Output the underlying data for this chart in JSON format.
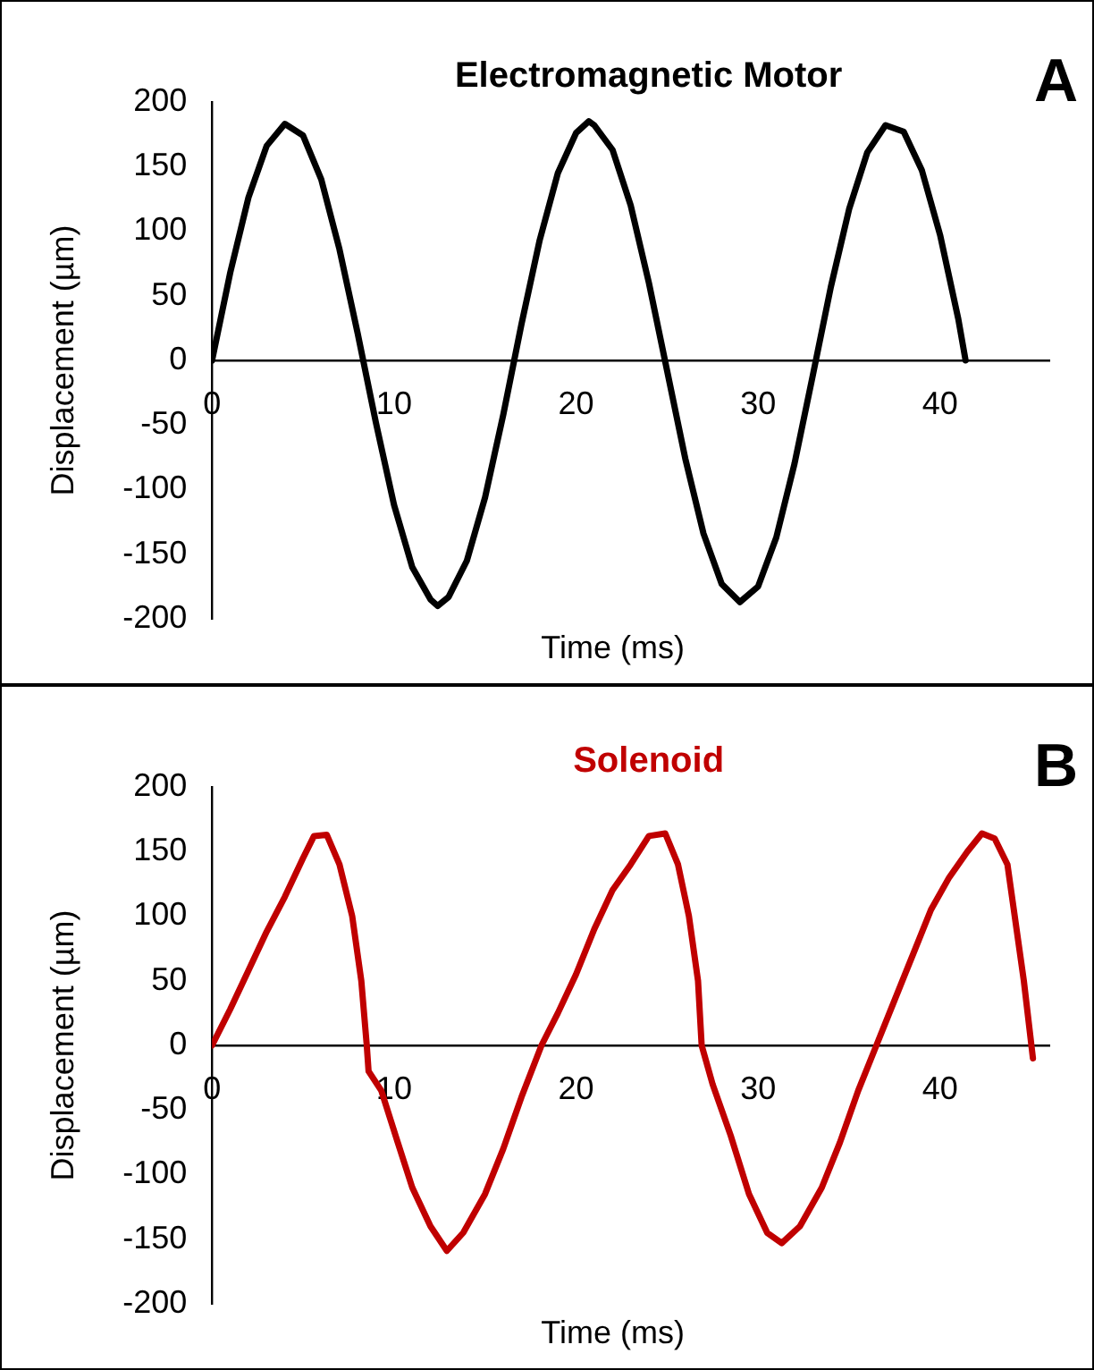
{
  "chart_data": [
    {
      "type": "line",
      "title": "Electromagnetic Motor",
      "xlabel": "Time (ms)",
      "ylabel": "Displacement (µm)",
      "annotations": [
        "A"
      ],
      "xlim": [
        0,
        46
      ],
      "xticks": [
        0,
        10,
        20,
        30,
        40
      ],
      "ylim": [
        -200,
        200
      ],
      "yticks": [
        -200,
        -150,
        -100,
        -50,
        0,
        50,
        100,
        150,
        200
      ],
      "grid": false,
      "legend": false,
      "marker": "none",
      "line_style": "solid",
      "series": [
        {
          "color": "#000000",
          "x": [
            0,
            1,
            2,
            3,
            4,
            5,
            6,
            7,
            8,
            9,
            10,
            11,
            12,
            12.4,
            13,
            14,
            15,
            16,
            17,
            18,
            19,
            20,
            20.7,
            21,
            22,
            23,
            24,
            25,
            26,
            27,
            28,
            29,
            30,
            31,
            32,
            33,
            34,
            35,
            36,
            37,
            38,
            39,
            40,
            41,
            41.4
          ],
          "values": [
            0,
            68,
            126,
            166,
            183,
            174,
            140,
            86,
            21,
            -48,
            -112,
            -160,
            -185,
            -190,
            -183,
            -155,
            -106,
            -42,
            28,
            93,
            145,
            176,
            185,
            182,
            163,
            120,
            60,
            -8,
            -76,
            -134,
            -173,
            -187,
            -175,
            -137,
            -80,
            -12,
            57,
            117,
            161,
            182,
            177,
            147,
            97,
            32,
            0
          ]
        }
      ]
    },
    {
      "type": "line",
      "title": "Solenoid",
      "xlabel": "Time (ms)",
      "ylabel": "Displacement (µm)",
      "annotations": [
        "B"
      ],
      "xlim": [
        0,
        46
      ],
      "xticks": [
        0,
        10,
        20,
        30,
        40
      ],
      "ylim": [
        -200,
        200
      ],
      "yticks": [
        -200,
        -150,
        -100,
        -50,
        0,
        50,
        100,
        150,
        200
      ],
      "grid": false,
      "legend": false,
      "marker": "none",
      "line_style": "solid",
      "series": [
        {
          "color": "#c00000",
          "x": [
            0,
            1,
            2,
            3,
            4,
            5,
            5.6,
            6.3,
            7,
            7.7,
            8.2,
            8.5,
            8.6,
            9.3,
            10.2,
            11,
            12,
            12.9,
            13.8,
            15,
            16,
            17,
            18.1,
            19,
            20,
            21,
            22,
            23,
            24,
            24.9,
            25.6,
            26.2,
            26.7,
            26.9,
            27.5,
            28.5,
            29.5,
            30.5,
            31.3,
            32.3,
            33.5,
            34.5,
            35.5,
            36.5,
            37.5,
            38.5,
            39.5,
            40.5,
            41.5,
            42.3,
            43,
            43.7,
            44.2,
            44.6,
            45.1
          ],
          "values": [
            0,
            28,
            58,
            88,
            115,
            145,
            162,
            163,
            140,
            100,
            50,
            0,
            -20,
            -35,
            -75,
            -110,
            -140,
            -159,
            -145,
            -115,
            -80,
            -40,
            0,
            25,
            55,
            90,
            120,
            140,
            162,
            164,
            140,
            100,
            50,
            0,
            -30,
            -70,
            -115,
            -145,
            -153,
            -140,
            -110,
            -75,
            -35,
            0,
            35,
            70,
            105,
            130,
            150,
            164,
            160,
            140,
            90,
            50,
            -10
          ]
        }
      ]
    }
  ]
}
